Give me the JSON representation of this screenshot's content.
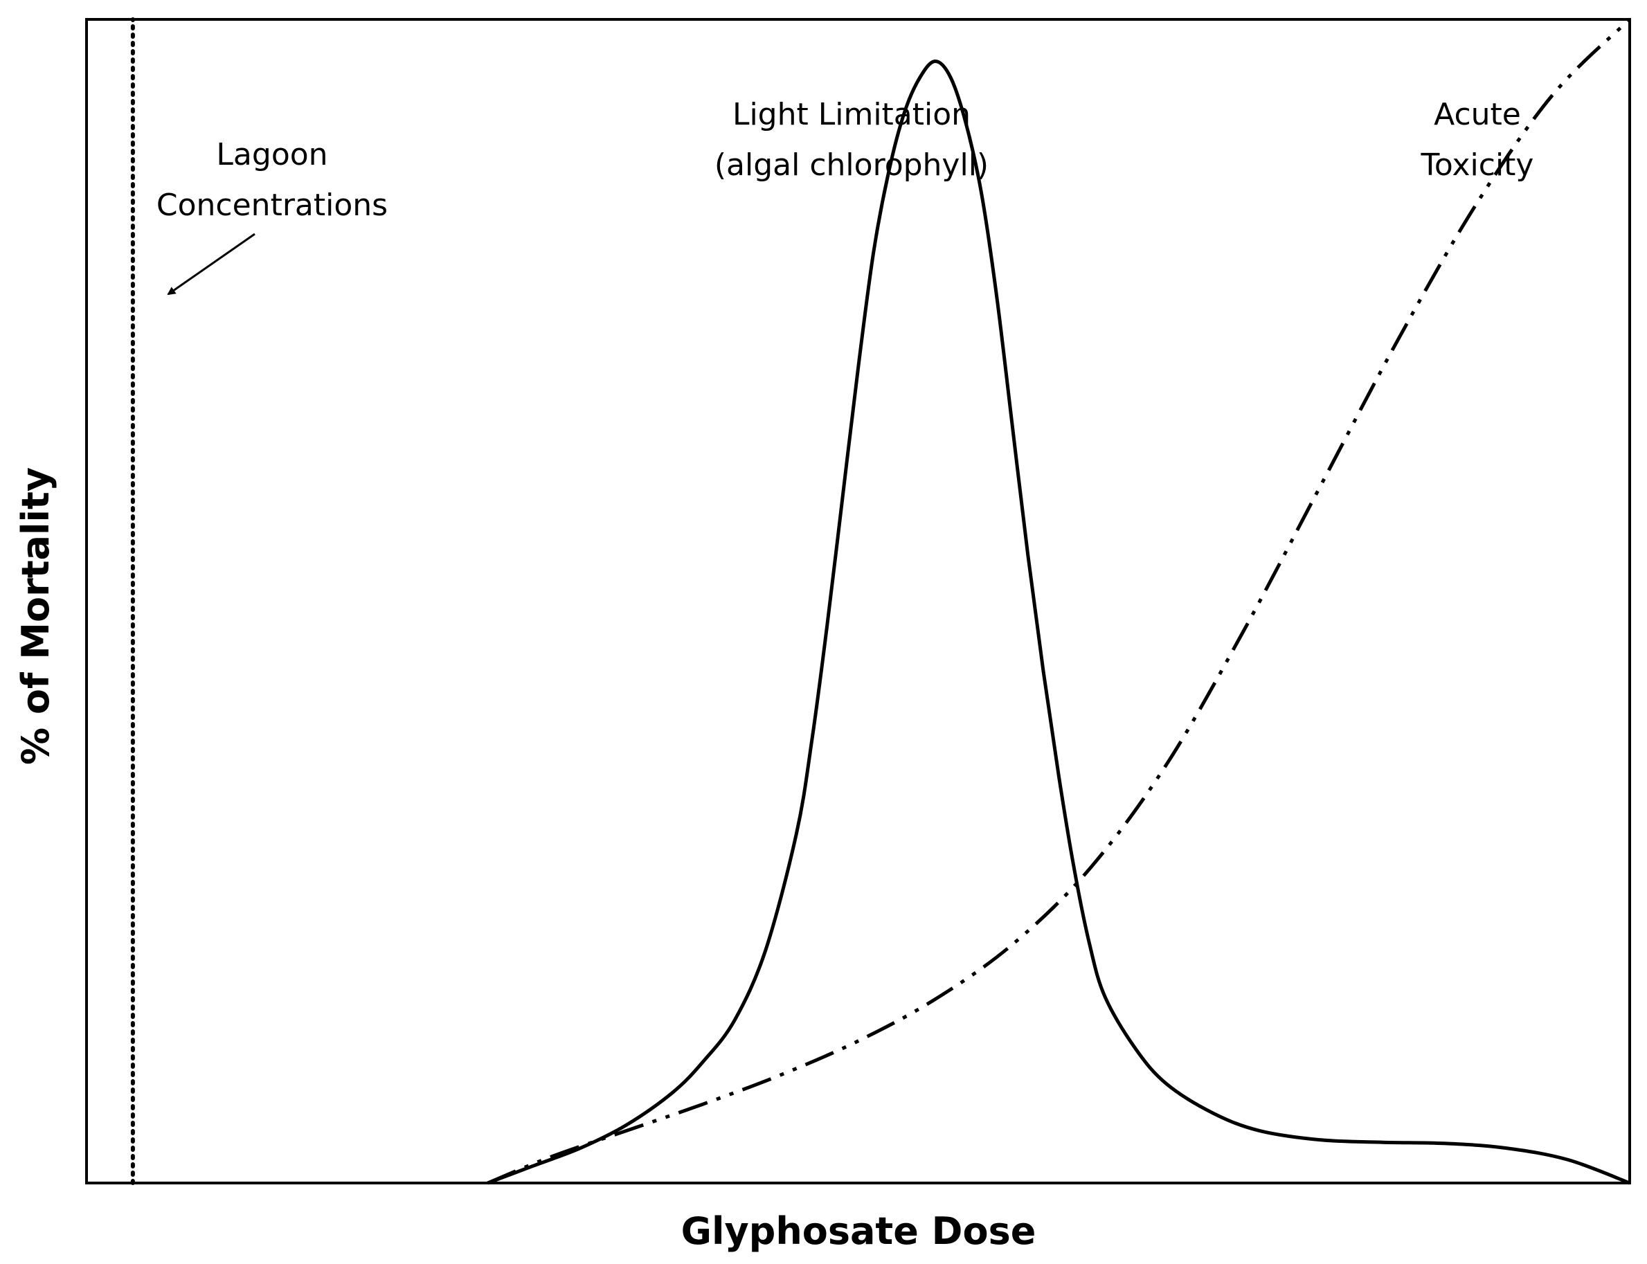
{
  "chart_data": {
    "type": "line",
    "xlabel": "Glyphosate Dose",
    "ylabel": "% of Mortality",
    "xlim": [
      0,
      100
    ],
    "ylim": [
      0,
      100
    ],
    "grid": false,
    "tick_labels": false,
    "series": [
      {
        "line_style": "solid",
        "color": "#000000",
        "points": [
          [
            26,
            0
          ],
          [
            29,
            1.5
          ],
          [
            32,
            3
          ],
          [
            35,
            5
          ],
          [
            38,
            7.8
          ],
          [
            40,
            10.5
          ],
          [
            42,
            14
          ],
          [
            44,
            20
          ],
          [
            46,
            30
          ],
          [
            47,
            38
          ],
          [
            48,
            48
          ],
          [
            49,
            59
          ],
          [
            50,
            70
          ],
          [
            51,
            80
          ],
          [
            52,
            87
          ],
          [
            53,
            92
          ],
          [
            54,
            95
          ],
          [
            55,
            96.4
          ],
          [
            56,
            95
          ],
          [
            57,
            91
          ],
          [
            58,
            85
          ],
          [
            59,
            76
          ],
          [
            60,
            65
          ],
          [
            61,
            54
          ],
          [
            62,
            44
          ],
          [
            63,
            35
          ],
          [
            64,
            27
          ],
          [
            65,
            20.5
          ],
          [
            66,
            16
          ],
          [
            68,
            11.5
          ],
          [
            70,
            8.5
          ],
          [
            73,
            6
          ],
          [
            76,
            4.5
          ],
          [
            80,
            3.7
          ],
          [
            84,
            3.5
          ],
          [
            88,
            3.4
          ],
          [
            92,
            3
          ],
          [
            96,
            2
          ],
          [
            100,
            0
          ]
        ]
      },
      {
        "line_style": "dash-dot-dot",
        "color": "#000000",
        "points": [
          [
            26,
            0
          ],
          [
            30,
            2.2
          ],
          [
            35,
            4.5
          ],
          [
            40,
            6.8
          ],
          [
            45,
            9.3
          ],
          [
            50,
            12.2
          ],
          [
            55,
            15.8
          ],
          [
            60,
            20.5
          ],
          [
            65,
            27
          ],
          [
            70,
            36
          ],
          [
            75,
            47.5
          ],
          [
            80,
            60
          ],
          [
            85,
            72.5
          ],
          [
            90,
            84
          ],
          [
            95,
            93.5
          ],
          [
            100,
            100
          ]
        ]
      },
      {
        "line_style": "dotted",
        "color": "#000000",
        "points": [
          [
            3,
            0
          ],
          [
            3,
            100
          ]
        ]
      }
    ],
    "annotations": [
      {
        "lines": [
          "Lagoon",
          "Concentrations"
        ],
        "arrow": true
      },
      {
        "lines": [
          "Light Limitation",
          "(algal chlorophyll)"
        ]
      },
      {
        "lines": [
          "Acute",
          "Toxicity"
        ]
      }
    ]
  }
}
